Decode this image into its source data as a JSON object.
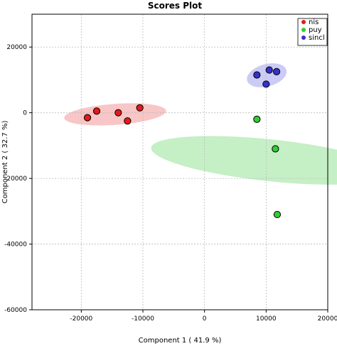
{
  "chart_data": {
    "type": "scatter",
    "title": "Scores Plot",
    "xlabel": "Component 1 ( 41.9 %)",
    "ylabel": "Component 2 ( 32.7 %)",
    "xlim": [
      -28000,
      20000
    ],
    "ylim": [
      -60000,
      30000
    ],
    "x_ticks": [
      -20000,
      -10000,
      0,
      10000,
      20000
    ],
    "x_tick_labels": [
      "-20000",
      "-10000",
      "0",
      "10000",
      "20000"
    ],
    "y_ticks": [
      -60000,
      -40000,
      -20000,
      0,
      20000
    ],
    "y_tick_labels": [
      "-60000",
      "-40000",
      "-20000",
      "0",
      "20000"
    ],
    "grid": true,
    "legend_position": "top-right",
    "series": [
      {
        "name": "nis",
        "color": "#e41a1c",
        "ellipse_color": "#f4a0a0",
        "points": [
          {
            "x": -19000,
            "y": -1500
          },
          {
            "x": -17500,
            "y": 500
          },
          {
            "x": -14000,
            "y": 0
          },
          {
            "x": -12500,
            "y": -2500
          },
          {
            "x": -10500,
            "y": 1500
          }
        ],
        "ellipse": {
          "cx": -14500,
          "cy": -500,
          "rx": 8300,
          "ry": 3200,
          "angle_deg": -4
        }
      },
      {
        "name": "puy",
        "color": "#33cc33",
        "ellipse_color": "#9fe59f",
        "points": [
          {
            "x": 8500,
            "y": -2000
          },
          {
            "x": 11500,
            "y": -11000
          },
          {
            "x": 11800,
            "y": -31000
          }
        ],
        "ellipse": {
          "cx": 10700,
          "cy": -14500,
          "rx": 3400,
          "ry": 36500,
          "angle_deg": -84
        }
      },
      {
        "name": "sincl",
        "color": "#3333cc",
        "ellipse_color": "#a9a9ee",
        "points": [
          {
            "x": 8500,
            "y": 11500
          },
          {
            "x": 10000,
            "y": 8700
          },
          {
            "x": 10500,
            "y": 13000
          },
          {
            "x": 11700,
            "y": 12500
          }
        ],
        "ellipse": {
          "cx": 10100,
          "cy": 11400,
          "rx": 3300,
          "ry": 3400,
          "angle_deg": -15
        }
      }
    ]
  }
}
